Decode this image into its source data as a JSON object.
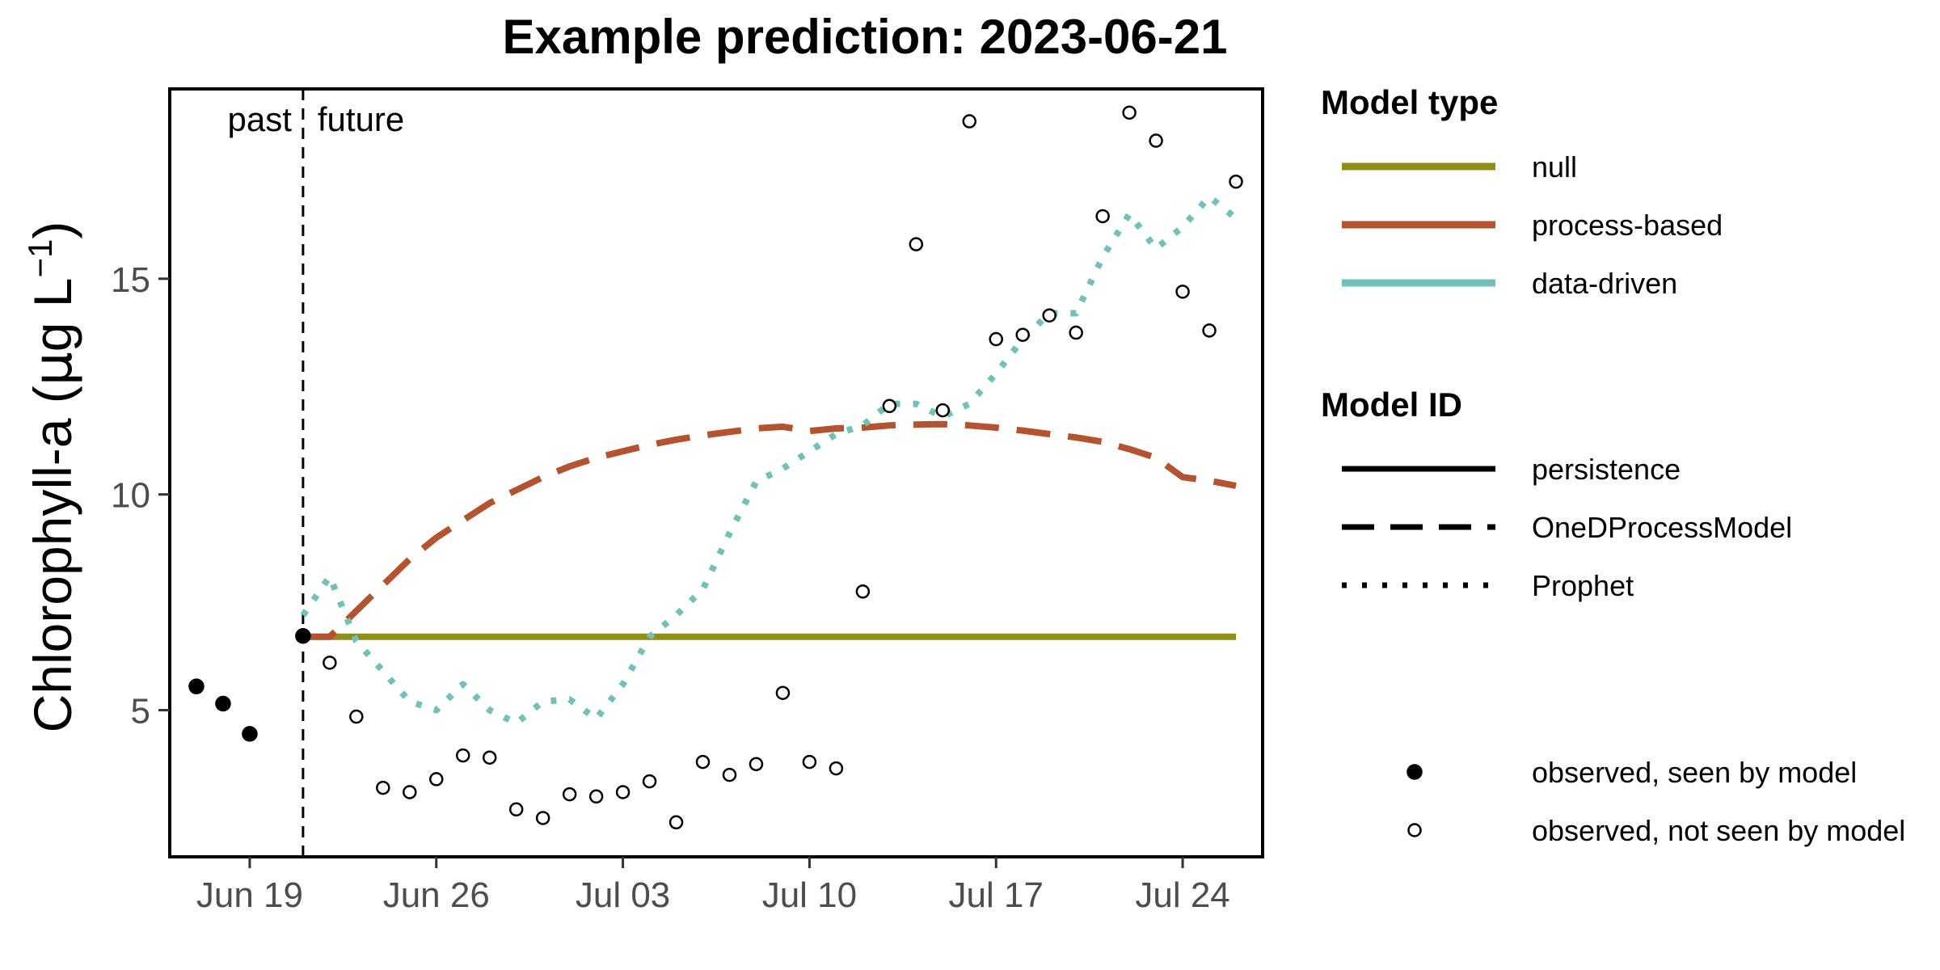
{
  "chart_data": {
    "type": "line",
    "title": "Example prediction: 2023-06-21",
    "ylabel": "Chlorophyll-a (μg L⁻¹)",
    "ylabel_main": "Chlorophyll-a (",
    "ylabel_mu": "μ",
    "ylabel_unit": "g L",
    "ylabel_sup": "−1",
    "ylabel_close": ")",
    "xlabel": "",
    "x_type": "date",
    "xlim": [
      "2023-06-16",
      "2023-07-27"
    ],
    "ylim": [
      1.6,
      19.4
    ],
    "x_ticks": [
      {
        "date": "2023-06-19",
        "label": "Jun 19"
      },
      {
        "date": "2023-06-26",
        "label": "Jun 26"
      },
      {
        "date": "2023-07-03",
        "label": "Jul 03"
      },
      {
        "date": "2023-07-10",
        "label": "Jul 10"
      },
      {
        "date": "2023-07-17",
        "label": "Jul 17"
      },
      {
        "date": "2023-07-24",
        "label": "Jul 24"
      }
    ],
    "y_ticks": [
      5,
      10,
      15
    ],
    "grid": false,
    "reference_line": {
      "date": "2023-06-21",
      "style": "dashed"
    },
    "annotations": {
      "past": "past",
      "future": "future"
    },
    "colors": {
      "null": "#8F8E16",
      "process-based": "#B5522F",
      "data-driven": "#72C1B9"
    },
    "series": [
      {
        "name": "persistence",
        "model_type": "null",
        "line_style": "solid",
        "x": [
          "2023-06-21",
          "2023-07-26"
        ],
        "y": [
          6.7,
          6.7
        ]
      },
      {
        "name": "OneDProcessModel",
        "model_type": "process-based",
        "line_style": "dashed",
        "x": [
          "2023-06-21",
          "2023-06-22",
          "2023-06-23",
          "2023-06-24",
          "2023-06-25",
          "2023-06-26",
          "2023-06-27",
          "2023-06-28",
          "2023-06-29",
          "2023-06-30",
          "2023-07-01",
          "2023-07-02",
          "2023-07-03",
          "2023-07-04",
          "2023-07-05",
          "2023-07-06",
          "2023-07-07",
          "2023-07-08",
          "2023-07-09",
          "2023-07-10",
          "2023-07-11",
          "2023-07-12",
          "2023-07-13",
          "2023-07-14",
          "2023-07-15",
          "2023-07-16",
          "2023-07-17",
          "2023-07-18",
          "2023-07-19",
          "2023-07-20",
          "2023-07-21",
          "2023-07-22",
          "2023-07-23",
          "2023-07-24",
          "2023-07-25",
          "2023-07-26"
        ],
        "y": [
          6.7,
          6.7,
          7.3,
          7.9,
          8.5,
          9.0,
          9.4,
          9.8,
          10.1,
          10.4,
          10.65,
          10.85,
          11.0,
          11.15,
          11.27,
          11.37,
          11.45,
          11.53,
          11.57,
          11.47,
          11.53,
          11.55,
          11.6,
          11.62,
          11.63,
          11.6,
          11.55,
          11.48,
          11.4,
          11.32,
          11.22,
          11.05,
          10.85,
          10.4,
          10.32,
          10.2
        ]
      },
      {
        "name": "Prophet",
        "model_type": "data-driven",
        "line_style": "dotted",
        "x": [
          "2023-06-21",
          "2023-06-22",
          "2023-06-23",
          "2023-06-24",
          "2023-06-25",
          "2023-06-26",
          "2023-06-27",
          "2023-06-28",
          "2023-06-29",
          "2023-06-30",
          "2023-07-01",
          "2023-07-02",
          "2023-07-03",
          "2023-07-04",
          "2023-07-05",
          "2023-07-06",
          "2023-07-07",
          "2023-07-08",
          "2023-07-09",
          "2023-07-10",
          "2023-07-11",
          "2023-07-12",
          "2023-07-13",
          "2023-07-14",
          "2023-07-15",
          "2023-07-16",
          "2023-07-17",
          "2023-07-18",
          "2023-07-19",
          "2023-07-20",
          "2023-07-21",
          "2023-07-22",
          "2023-07-23",
          "2023-07-24",
          "2023-07-25",
          "2023-07-26"
        ],
        "y": [
          7.2,
          8.1,
          6.6,
          5.9,
          5.2,
          5.0,
          5.6,
          5.0,
          4.7,
          5.2,
          5.25,
          4.8,
          5.6,
          6.7,
          7.2,
          7.8,
          9.1,
          10.3,
          10.6,
          11.0,
          11.4,
          11.6,
          12.1,
          12.1,
          11.8,
          12.1,
          12.8,
          13.6,
          14.2,
          14.2,
          15.5,
          16.5,
          15.7,
          16.2,
          16.9,
          16.4
        ]
      }
    ],
    "observations": [
      {
        "name": "observed, seen by model",
        "filled": true,
        "x": [
          "2023-06-17",
          "2023-06-18",
          "2023-06-19",
          "2023-06-21"
        ],
        "y": [
          5.55,
          5.15,
          4.45,
          6.72
        ]
      },
      {
        "name": "observed, not seen by model",
        "filled": false,
        "x": [
          "2023-06-22",
          "2023-06-23",
          "2023-06-24",
          "2023-06-25",
          "2023-06-26",
          "2023-06-27",
          "2023-06-28",
          "2023-06-29",
          "2023-06-30",
          "2023-07-01",
          "2023-07-02",
          "2023-07-03",
          "2023-07-04",
          "2023-07-05",
          "2023-07-06",
          "2023-07-07",
          "2023-07-08",
          "2023-07-09",
          "2023-07-10",
          "2023-07-11",
          "2023-07-12",
          "2023-07-13",
          "2023-07-14",
          "2023-07-15",
          "2023-07-16",
          "2023-07-17",
          "2023-07-18",
          "2023-07-19",
          "2023-07-20",
          "2023-07-21",
          "2023-07-22",
          "2023-07-23",
          "2023-07-24",
          "2023-07-25",
          "2023-07-26"
        ],
        "y": [
          6.1,
          4.85,
          3.2,
          3.1,
          3.4,
          3.95,
          3.9,
          2.7,
          2.5,
          3.05,
          3.0,
          3.1,
          3.35,
          2.4,
          3.8,
          3.5,
          3.75,
          5.4,
          3.8,
          3.65,
          7.75,
          12.05,
          15.8,
          11.95,
          18.65,
          13.6,
          13.7,
          14.15,
          13.75,
          16.45,
          18.85,
          18.2,
          14.7,
          13.8,
          17.25
        ]
      }
    ],
    "legend": {
      "placement": "right",
      "model_type_title": "Model type",
      "model_type_items": [
        {
          "label": "null",
          "color": "#8F8E16"
        },
        {
          "label": "process-based",
          "color": "#B5522F"
        },
        {
          "label": "data-driven",
          "color": "#72C1B9"
        }
      ],
      "model_id_title": "Model ID",
      "model_id_items": [
        {
          "label": "persistence",
          "line_style": "solid"
        },
        {
          "label": "OneDProcessModel",
          "line_style": "dashed"
        },
        {
          "label": "Prophet",
          "line_style": "dotted"
        }
      ],
      "observation_items": [
        {
          "label": "observed, seen by model",
          "filled": true
        },
        {
          "label": "observed, not seen by model",
          "filled": false
        }
      ]
    }
  }
}
